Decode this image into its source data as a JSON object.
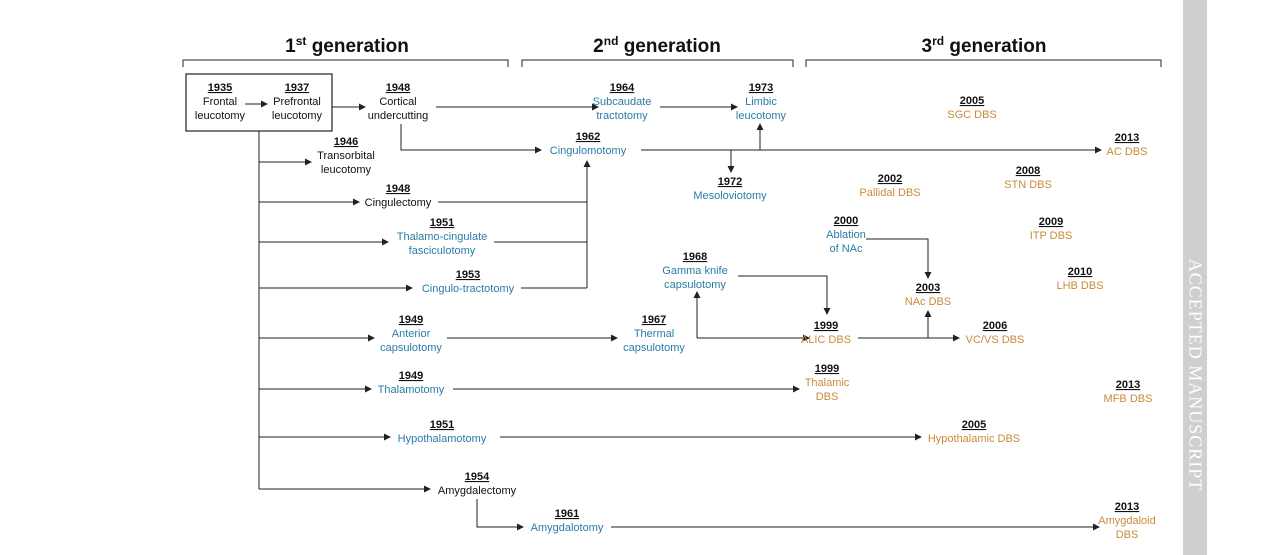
{
  "generations": [
    {
      "ordinal": "1",
      "suffix": "st",
      "word": "generation"
    },
    {
      "ordinal": "2",
      "suffix": "nd",
      "word": "generation"
    },
    {
      "ordinal": "3",
      "suffix": "rd",
      "word": "generation"
    }
  ],
  "nodes": {
    "frontal": {
      "year": "1935",
      "lines": [
        "Frontal",
        "leucotomy"
      ]
    },
    "prefrontal": {
      "year": "1937",
      "lines": [
        "Prefrontal",
        "leucotomy"
      ]
    },
    "cortical": {
      "year": "1948",
      "lines": [
        "Cortical",
        "undercutting"
      ]
    },
    "transorbital": {
      "year": "1946",
      "lines": [
        "Transorbital",
        "leucotomy"
      ]
    },
    "cingulectomy": {
      "year": "1948",
      "lines": [
        "Cingulectomy"
      ]
    },
    "thalamo_cingulate": {
      "year": "1951",
      "lines": [
        "Thalamo-cingulate",
        "fasciculotomy"
      ]
    },
    "cingulo_tractotomy": {
      "year": "1953",
      "lines": [
        "Cingulo-tractotomy"
      ]
    },
    "anterior_caps": {
      "year": "1949",
      "lines": [
        "Anterior",
        "capsulotomy"
      ]
    },
    "thalamotomy": {
      "year": "1949",
      "lines": [
        "Thalamotomy"
      ]
    },
    "hypothalamotomy": {
      "year": "1951",
      "lines": [
        "Hypothalamotomy"
      ]
    },
    "amygdalectomy": {
      "year": "1954",
      "lines": [
        "Amygdalectomy"
      ]
    },
    "amygdalotomy": {
      "year": "1961",
      "lines": [
        "Amygdalotomy"
      ]
    },
    "subcaudate": {
      "year": "1964",
      "lines": [
        "Subcaudate",
        "tractotomy"
      ]
    },
    "limbic": {
      "year": "1973",
      "lines": [
        "Limbic",
        "leucotomy"
      ]
    },
    "cingulomotomy": {
      "year": "1962",
      "lines": [
        "Cingulomotomy"
      ]
    },
    "mesoloviotomy": {
      "year": "1972",
      "lines": [
        "Mesoloviotomy"
      ]
    },
    "gamma_knife": {
      "year": "1968",
      "lines": [
        "Gamma knife",
        "capsulotomy"
      ]
    },
    "thermal_caps": {
      "year": "1967",
      "lines": [
        "Thermal",
        "capsulotomy"
      ]
    },
    "sgc_dbs": {
      "year": "2005",
      "lines": [
        "SGC DBS"
      ]
    },
    "ac_dbs": {
      "year": "2013",
      "lines": [
        "AC DBS"
      ]
    },
    "pallidal_dbs": {
      "year": "2002",
      "lines": [
        "Pallidal DBS"
      ]
    },
    "stn_dbs": {
      "year": "2008",
      "lines": [
        "STN DBS"
      ]
    },
    "ablation_nac": {
      "year": "2000",
      "lines": [
        "Ablation",
        "of NAc"
      ]
    },
    "itp_dbs": {
      "year": "2009",
      "lines": [
        "ITP DBS"
      ]
    },
    "nac_dbs": {
      "year": "2003",
      "lines": [
        "NAc DBS"
      ]
    },
    "lhb_dbs": {
      "year": "2010",
      "lines": [
        "LHB DBS"
      ]
    },
    "alic_dbs": {
      "year": "1999",
      "lines": [
        "ALIC DBS"
      ]
    },
    "vc_vs_dbs": {
      "year": "2006",
      "lines": [
        "VC/VS DBS"
      ]
    },
    "thalamic_dbs": {
      "year": "1999",
      "lines": [
        "Thalamic",
        "DBS"
      ]
    },
    "mfb_dbs": {
      "year": "2013",
      "lines": [
        "MFB DBS"
      ]
    },
    "hypothalamic_dbs": {
      "year": "2005",
      "lines": [
        "Hypothalamic DBS"
      ]
    },
    "amygdaloid_dbs": {
      "year": "2013",
      "lines": [
        "Amygdaloid",
        "DBS"
      ]
    }
  },
  "side_banner": {
    "text": "ACCEPTED MANUSCRIPT"
  },
  "colors": {
    "first": "#111111",
    "second": "#2a7ca8",
    "third": "#c98a3a"
  }
}
